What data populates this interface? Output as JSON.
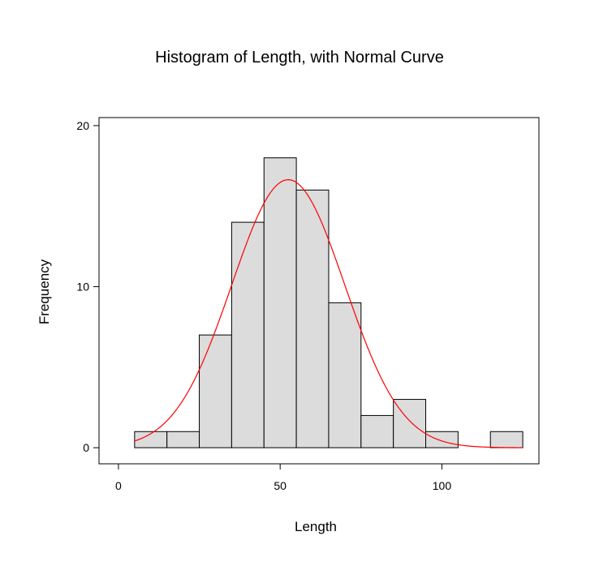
{
  "chart_data": {
    "type": "bar",
    "title": "Histogram of Length, with Normal Curve",
    "xlabel": "Length",
    "ylabel": "Frequency",
    "xlim": [
      -6,
      130
    ],
    "ylim": [
      -1,
      20.5
    ],
    "x_ticks": [
      0,
      50,
      100
    ],
    "y_ticks": [
      0,
      10,
      20
    ],
    "grid": false,
    "bin_width": 10,
    "bin_centers": [
      10,
      20,
      30,
      40,
      50,
      60,
      70,
      80,
      90,
      100,
      110,
      120
    ],
    "values": [
      1,
      1,
      7,
      14,
      18,
      16,
      9,
      2,
      3,
      1,
      0,
      1
    ],
    "normal_curve": {
      "mean": 52.5,
      "sd": 17.5,
      "n": 73,
      "color": "#ff0000"
    },
    "bar_fill": "#dcdcdc",
    "bar_stroke": "#000000"
  }
}
